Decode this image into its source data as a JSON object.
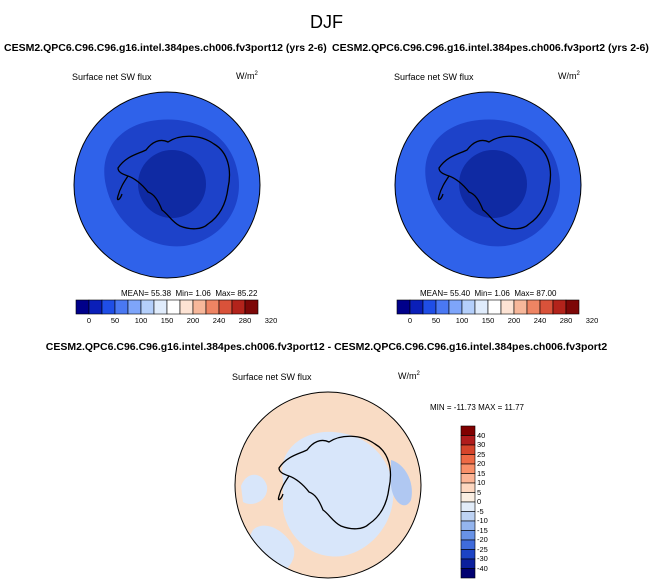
{
  "title": "DJF",
  "panels": [
    {
      "id": "left",
      "case_title": "CESM2.QPC6.C96.C96.g16.intel.384pes.ch006.fv3port12 (yrs 2-6)",
      "variable": "Surface net SW flux",
      "units_base": "W/m",
      "units_exp": "2",
      "mean_label": "MEAN=",
      "mean": "55.38",
      "min_label": "Min=",
      "min": "1.06",
      "max_label": "Max=",
      "max": "85.22"
    },
    {
      "id": "right",
      "case_title": "CESM2.QPC6.C96.C96.g16.intel.384pes.ch006.fv3port2 (yrs 2-6)",
      "variable": "Surface net SW flux",
      "units_base": "W/m",
      "units_exp": "2",
      "mean_label": "MEAN=",
      "mean": "55.40",
      "min_label": "Min=",
      "min": "1.06",
      "max_label": "Max=",
      "max": "87.00"
    }
  ],
  "diff_panel": {
    "case_title": "CESM2.QPC6.C96.C96.g16.intel.384pes.ch006.fv3port12 - CESM2.QPC6.C96.C96.g16.intel.384pes.ch006.fv3port2",
    "variable": "Surface net SW flux",
    "units_base": "W/m",
    "units_exp": "2",
    "stats": "MIN = -11.73 MAX =  11.77"
  },
  "colorbar_abs": {
    "labels": [
      "0",
      "50",
      "100",
      "150",
      "200",
      "240",
      "280",
      "320"
    ],
    "colors": [
      "#00008a",
      "#0a1fb8",
      "#1f4ee6",
      "#4a78f2",
      "#7ea5fa",
      "#b4cffb",
      "#e0ecfc",
      "#ffffff",
      "#fde3d4",
      "#f7b79a",
      "#ee8463",
      "#d9523a",
      "#b3231b",
      "#7d0707"
    ]
  },
  "colorbar_diff": {
    "labels": [
      "40",
      "30",
      "25",
      "20",
      "15",
      "10",
      "5",
      "0",
      "-5",
      "-10",
      "-15",
      "-20",
      "-25",
      "-30",
      "-40"
    ],
    "colors": [
      "#800000",
      "#b01c1c",
      "#d6452b",
      "#ee6a45",
      "#f99069",
      "#fcb596",
      "#fdd7c0",
      "#faeee2",
      "#e2ecf9",
      "#bed3f4",
      "#94b5ee",
      "#6892e6",
      "#3f6bdb",
      "#1c43c4",
      "#0b1f9c",
      "#000070"
    ]
  },
  "map_colors": {
    "ocean_outer": "#2f62ea",
    "ring_mid": "#1d42c9",
    "pole_core": "#0f2aa3",
    "diff_base": "#f9dcc5",
    "diff_neg": "#d8e6fa",
    "diff_neg2": "#b0c8f2",
    "coast": "#000000"
  }
}
